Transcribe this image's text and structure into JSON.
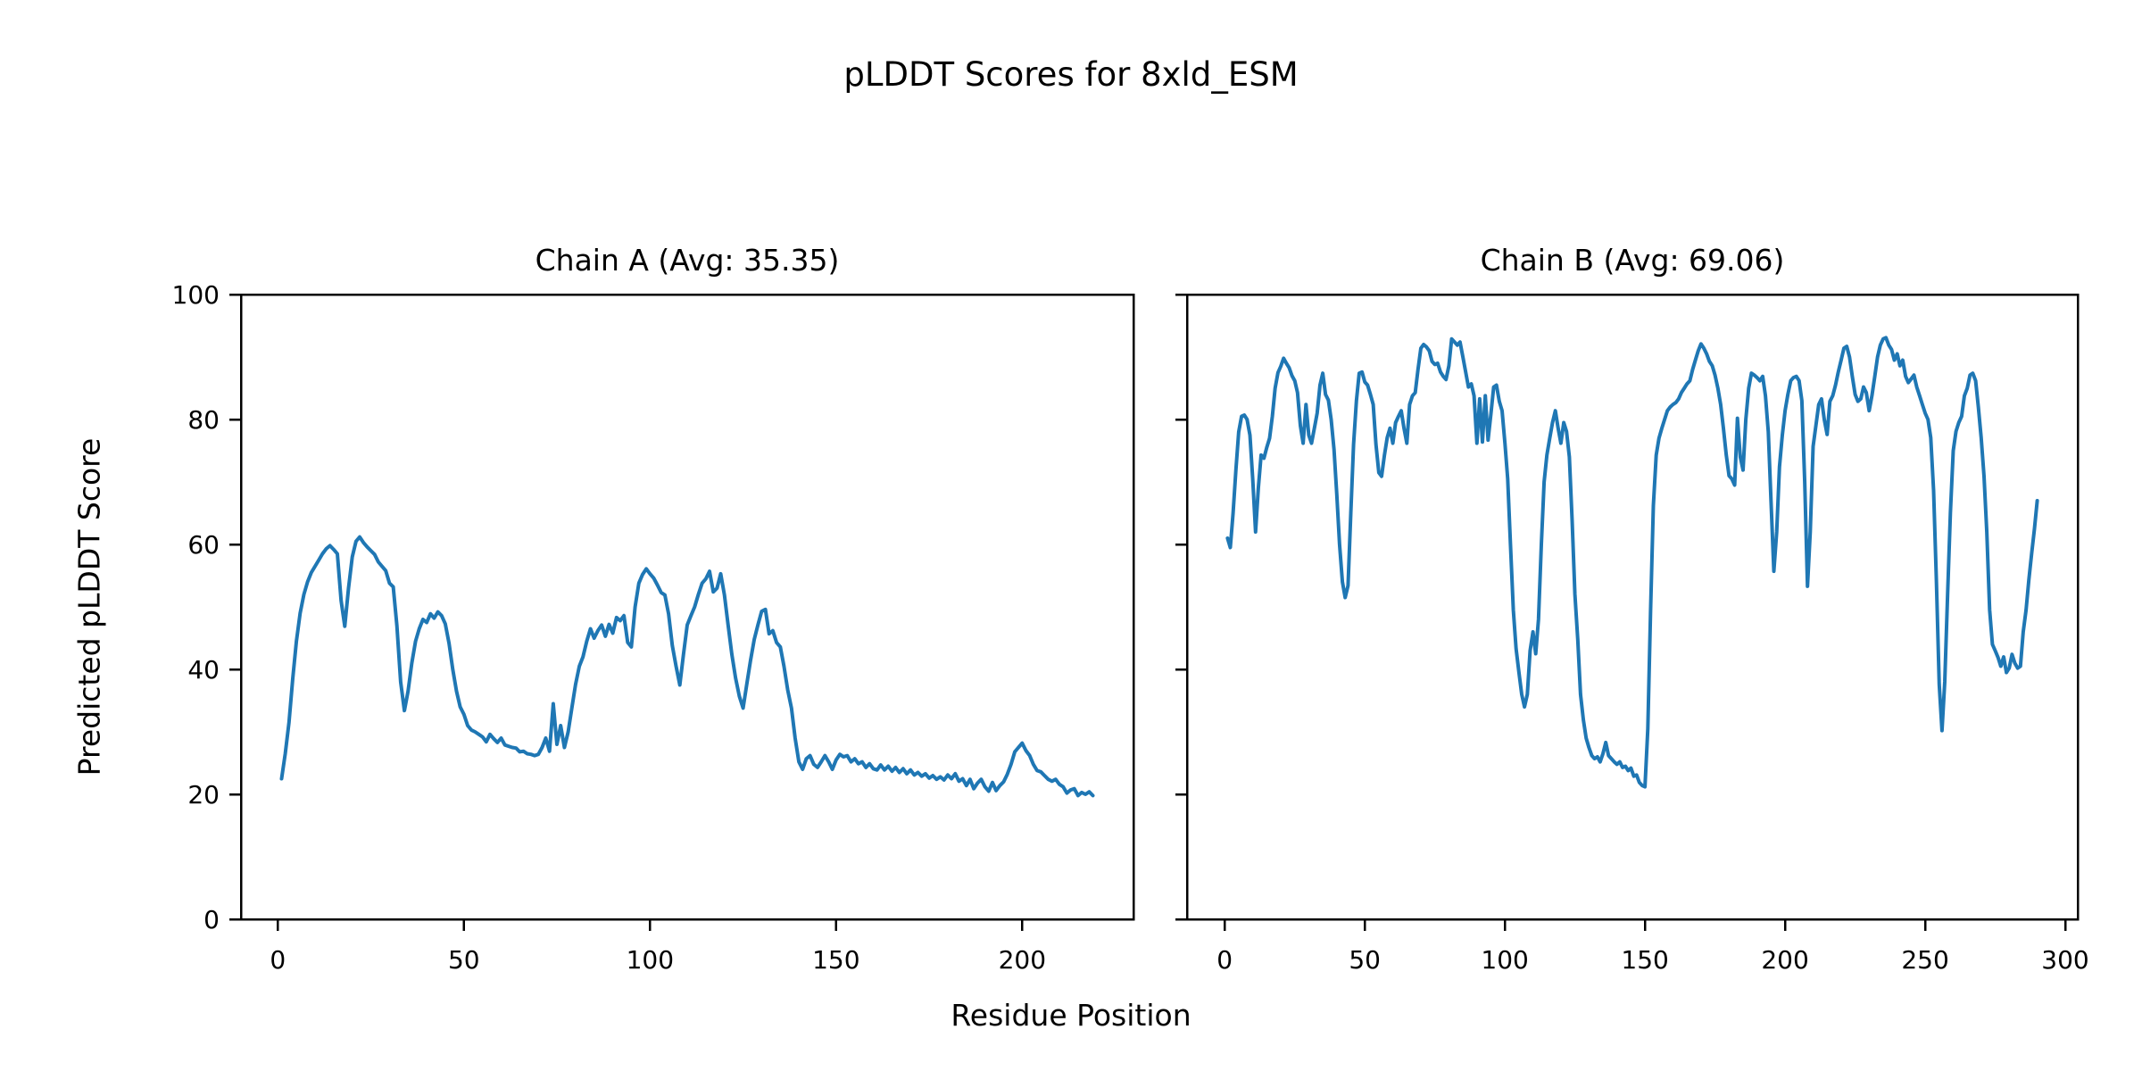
{
  "figure": {
    "suptitle": "pLDDT Scores for 8xld_ESM",
    "xlabel": "Residue Position",
    "ylabel": "Predicted pLDDT Score",
    "background_color": "#ffffff",
    "text_color": "#000000",
    "line_color": "#1f77b4"
  },
  "chart_data": [
    {
      "type": "line",
      "title": "Chain A (Avg: 35.35)",
      "avg": 35.35,
      "xlabel_shared": "Residue Position",
      "ylabel_shared": "Predicted pLDDT Score",
      "xlim": [
        -9.9,
        229.9
      ],
      "ylim": [
        0,
        100
      ],
      "x_ticks": [
        0,
        50,
        100,
        150,
        200
      ],
      "y_ticks": [
        0,
        20,
        40,
        60,
        80,
        100
      ],
      "y_tick_labels_visible": true,
      "grid": false,
      "legend": "none",
      "series": [
        {
          "name": "Chain A pLDDT",
          "color": "#1f77b4",
          "x_start": 1,
          "x_step": 1,
          "values": [
            22.5,
            26.5,
            31.5,
            38.5,
            44.5,
            49,
            52,
            54,
            55.5,
            56.5,
            57.5,
            58.5,
            59.3,
            59.8,
            59.2,
            58.5,
            51,
            46.9,
            53,
            58,
            60.5,
            61.2,
            60.3,
            59.6,
            59,
            58.4,
            57.2,
            56.5,
            55.8,
            53.8,
            53.2,
            47,
            38,
            33.4,
            36.5,
            41,
            44.5,
            46.5,
            48,
            47.5,
            48.9,
            48.2,
            49.2,
            48.6,
            47.3,
            44.2,
            40,
            36.5,
            34,
            32.8,
            31,
            30.3,
            30,
            29.6,
            29.2,
            28.4,
            29.6,
            28.9,
            28.3,
            29,
            27.9,
            27.7,
            27.5,
            27.4,
            26.8,
            26.9,
            26.5,
            26.4,
            26.2,
            26.4,
            27.5,
            29,
            26.9,
            34.5,
            28,
            31,
            27.5,
            30,
            33.8,
            37.6,
            40.5,
            42,
            44.5,
            46.5,
            45,
            46.2,
            47.1,
            45.3,
            47.2,
            45.8,
            48.3,
            47.8,
            48.6,
            44.3,
            43.6,
            50,
            53.8,
            55.2,
            56.1,
            55.3,
            54.6,
            53.5,
            52.3,
            51.9,
            48.9,
            43.8,
            40.5,
            37.5,
            42.4,
            47.1,
            48.6,
            50,
            52,
            53.8,
            54.5,
            55.7,
            52.4,
            53,
            55.3,
            51.9,
            47,
            42.4,
            38.6,
            35.7,
            33.8,
            37.6,
            41.4,
            44.8,
            47.1,
            49.3,
            49.6,
            45.7,
            46.2,
            44.3,
            43.6,
            40.5,
            36.7,
            33.8,
            29,
            25.2,
            24,
            25.7,
            26.2,
            24.8,
            24.3,
            25.2,
            26.2,
            25.2,
            24,
            25.5,
            26.4,
            26,
            26.2,
            25.2,
            25.7,
            24.9,
            25.2,
            24.3,
            24.9,
            24.1,
            23.9,
            24.7,
            23.9,
            24.5,
            23.7,
            24.3,
            23.5,
            24.1,
            23.3,
            23.9,
            23.1,
            23.5,
            22.9,
            23.3,
            22.6,
            23,
            22.4,
            22.8,
            22.3,
            23.1,
            22.5,
            23.3,
            22.1,
            22.5,
            21.4,
            22.4,
            20.9,
            21.8,
            22.4,
            21.2,
            20.5,
            21.9,
            20.6,
            21.4,
            22,
            23.2,
            24.8,
            26.8,
            27.5,
            28.2,
            27,
            26.2,
            24.8,
            23.8,
            23.6,
            23,
            22.4,
            22.1,
            22.4,
            21.6,
            21.2,
            20.2,
            20.7,
            20.9,
            19.8,
            20.3,
            20,
            20.4,
            19.8
          ]
        }
      ]
    },
    {
      "type": "line",
      "title": "Chain B (Avg: 69.06)",
      "avg": 69.06,
      "xlim": [
        -13.45,
        304.45
      ],
      "ylim": [
        0,
        100
      ],
      "x_ticks": [
        0,
        50,
        100,
        150,
        200,
        250,
        300
      ],
      "y_ticks": [
        0,
        20,
        40,
        60,
        80,
        100
      ],
      "y_tick_labels_visible": false,
      "grid": false,
      "legend": "none",
      "series": [
        {
          "name": "Chain B pLDDT",
          "color": "#1f77b4",
          "x_start": 1,
          "x_step": 1,
          "values": [
            61,
            59.5,
            65,
            72,
            78,
            80.5,
            80.7,
            80,
            77.5,
            70.5,
            62,
            69,
            74.3,
            73.8,
            75.5,
            77,
            80.5,
            85,
            87.5,
            88.5,
            89.8,
            89,
            88.3,
            87,
            86.2,
            84.3,
            79,
            76.2,
            82.4,
            77.5,
            76.2,
            78.6,
            81,
            85.5,
            87.4,
            84,
            83.1,
            80,
            75.2,
            68,
            60,
            54,
            51.5,
            53.4,
            65,
            76,
            83,
            87.4,
            87.6,
            86,
            85.5,
            84,
            82.4,
            76,
            71.5,
            70.9,
            74.3,
            77.1,
            78.6,
            76.2,
            79.5,
            80.5,
            81.4,
            78.6,
            76.2,
            82.4,
            83.8,
            84.3,
            88,
            91.4,
            92,
            91.6,
            91,
            89.3,
            88.8,
            89,
            87.6,
            86.9,
            86.4,
            88.6,
            92.9,
            92.4,
            91.9,
            92.4,
            90,
            87.6,
            85.2,
            85.7,
            83.8,
            76.2,
            83.3,
            76.4,
            83.8,
            76.7,
            80.9,
            85.2,
            85.5,
            82.9,
            81.4,
            76.2,
            70.5,
            60,
            49.5,
            43.3,
            39.5,
            36,
            34,
            36,
            43,
            46,
            42.5,
            48,
            60,
            70,
            74.3,
            77,
            79.5,
            81.4,
            78.6,
            76.2,
            79.5,
            78.1,
            74,
            63.8,
            52,
            44.8,
            36,
            31.9,
            29,
            27.5,
            26.2,
            25.7,
            26,
            25.2,
            26.5,
            28.3,
            26.2,
            25.7,
            25.2,
            24.8,
            25.2,
            24.3,
            24.5,
            23.8,
            24.2,
            22.9,
            23.1,
            21.9,
            21.4,
            21.2,
            30.5,
            49.5,
            66.2,
            74.3,
            77,
            78.6,
            80,
            81.4,
            82,
            82.4,
            82.7,
            83.3,
            84.3,
            85,
            85.7,
            86.2,
            88,
            89.5,
            91,
            92.1,
            91.4,
            90.5,
            89.3,
            88.6,
            87.1,
            85,
            82.4,
            78.6,
            74.3,
            71,
            70.5,
            69.5,
            80.2,
            74,
            71.9,
            80,
            85,
            87.4,
            87.1,
            86.7,
            86.2,
            86.9,
            83.8,
            78,
            66.7,
            55.7,
            62,
            72.4,
            77.5,
            81.4,
            84,
            86.2,
            86.7,
            86.9,
            86.2,
            83,
            70,
            53.3,
            62,
            75.7,
            79,
            82.4,
            83.3,
            80,
            77.6,
            82.9,
            83.8,
            85.5,
            87.6,
            89.5,
            91.4,
            91.7,
            90,
            86.9,
            84,
            82.9,
            83.3,
            85.2,
            84.3,
            81.4,
            83.8,
            86.9,
            90,
            91.9,
            92.9,
            93.1,
            91.9,
            91.2,
            89.5,
            90.5,
            88.6,
            89.5,
            86.9,
            85.9,
            86.5,
            87.1,
            85.2,
            83.8,
            82.4,
            81,
            80,
            77.1,
            68.6,
            54.3,
            37.6,
            30.2,
            38,
            52,
            65,
            75,
            78.1,
            79.5,
            80.5,
            83.8,
            85,
            87.1,
            87.4,
            86.2,
            81.9,
            77.1,
            70.9,
            62,
            49.5,
            44,
            43,
            41.9,
            40.5,
            42,
            39.5,
            40.2,
            42.4,
            41,
            40.2,
            40.5,
            46,
            49.5,
            54.3,
            58.6,
            62.5,
            67
          ]
        }
      ]
    }
  ]
}
